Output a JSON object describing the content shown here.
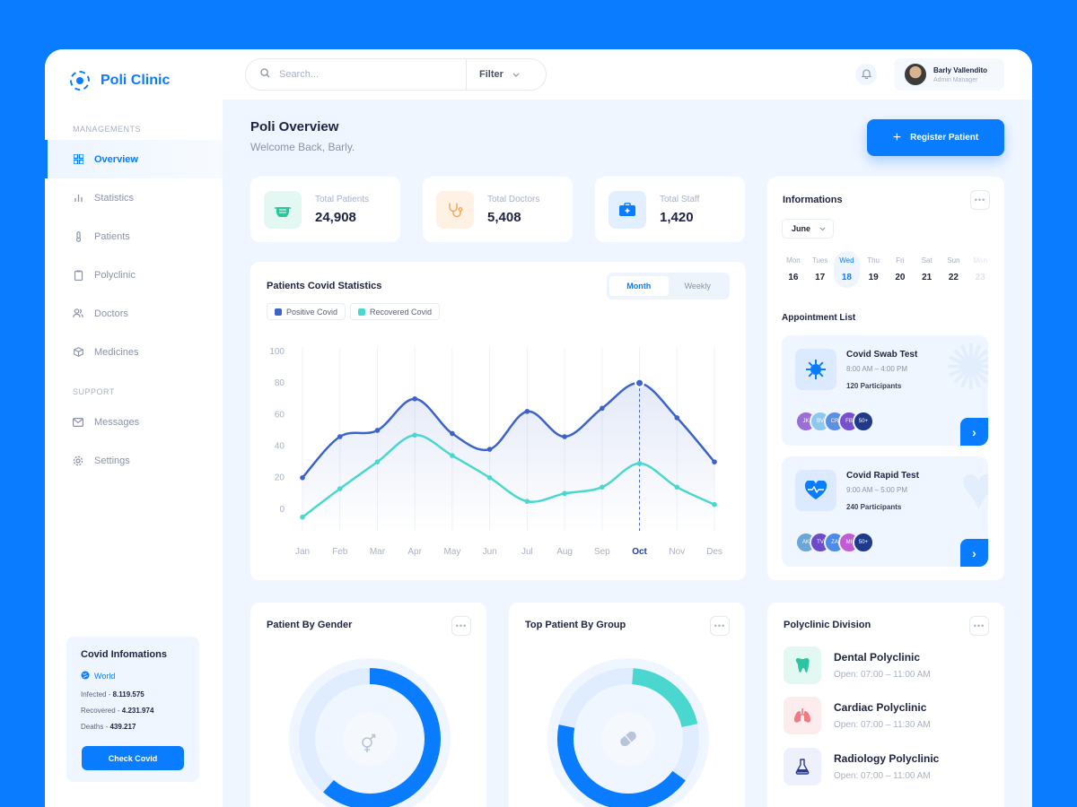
{
  "brand": {
    "name": "Poli Clinic"
  },
  "sidebar": {
    "managements_label": "MANAGEMENTS",
    "support_label": "SUPPORT",
    "items": [
      {
        "label": "Overview",
        "icon": "grid-icon"
      },
      {
        "label": "Statistics",
        "icon": "bar-chart-icon"
      },
      {
        "label": "Patients",
        "icon": "thermometer-icon"
      },
      {
        "label": "Polyclinic",
        "icon": "clipboard-icon"
      },
      {
        "label": "Doctors",
        "icon": "users-icon"
      },
      {
        "label": "Medicines",
        "icon": "box-icon"
      }
    ],
    "support_items": [
      {
        "label": "Messages",
        "icon": "mail-icon"
      },
      {
        "label": "Settings",
        "icon": "gear-icon"
      }
    ]
  },
  "covid_info": {
    "title": "Covid Infomations",
    "region": "World",
    "infected_label": "Infected - ",
    "infected": "8.119.575",
    "recovered_label": "Recovered - ",
    "recovered": "4.231.974",
    "deaths_label": "Deaths - ",
    "deaths": "439.217",
    "button": "Check Covid"
  },
  "topbar": {
    "search_placeholder": "Search...",
    "filter_label": "Filter",
    "user_name": "Barly Vallendito",
    "user_role": "Admin Manager"
  },
  "header": {
    "title": "Poli Overview",
    "subtitle": "Welcome Back, Barly.",
    "register_button": "Register Patient"
  },
  "stats": [
    {
      "label": "Total Patients",
      "value": "24,908",
      "color": "#2ec4a0"
    },
    {
      "label": "Total Doctors",
      "value": "5,408",
      "color": "#f5a85a"
    },
    {
      "label": "Total Staff",
      "value": "1,420",
      "color": "#0a7cff"
    }
  ],
  "covid_chart": {
    "title": "Patients Covid Statistics",
    "toggle": [
      "Month",
      "Weekly"
    ],
    "active_toggle": "Month"
  },
  "chart_data": {
    "type": "line",
    "categories": [
      "Jan",
      "Feb",
      "Mar",
      "Apr",
      "May",
      "Jun",
      "Jul",
      "Aug",
      "Sep",
      "Oct",
      "Nov",
      "Des"
    ],
    "series": [
      {
        "name": "Positive Covid",
        "color": "#3b63c9",
        "values": [
          20,
          46,
          50,
          70,
          48,
          38,
          62,
          46,
          64,
          80,
          58,
          30
        ]
      },
      {
        "name": "Recovered Covid",
        "color": "#4ad7cf",
        "values": [
          -5,
          13,
          30,
          47,
          34,
          20,
          5,
          10,
          14,
          29,
          14,
          3
        ]
      }
    ],
    "yticks": [
      100,
      80,
      60,
      40,
      20,
      0
    ],
    "ylim": [
      -8,
      100
    ],
    "highlight": "Oct"
  },
  "informations": {
    "title": "Informations",
    "month": "June",
    "days": [
      {
        "name": "Mon",
        "date": "16"
      },
      {
        "name": "Tues",
        "date": "17"
      },
      {
        "name": "Wed",
        "date": "18"
      },
      {
        "name": "Thu",
        "date": "19"
      },
      {
        "name": "Fri",
        "date": "20"
      },
      {
        "name": "Sat",
        "date": "21"
      },
      {
        "name": "Sun",
        "date": "22"
      },
      {
        "name": "Mon",
        "date": "23"
      }
    ],
    "selected_day": "18",
    "appointment_label": "Appointment List",
    "appointments": [
      {
        "title": "Covid Swab Test",
        "time": "8:00 AM – 4:00 PM",
        "participants": "120 Participants",
        "avatars": [
          "JK",
          "BV",
          "CR",
          "FB",
          "50+"
        ]
      },
      {
        "title": "Covid Rapid Test",
        "time": "9:00 AM – 5:00 PM",
        "participants": "240 Participants",
        "avatars": [
          "AK",
          "TV",
          "ZA",
          "MI",
          "50+"
        ]
      }
    ]
  },
  "gender_card": {
    "title": "Patient By Gender"
  },
  "group_card": {
    "title": "Top Patient By Group"
  },
  "polyclinic": {
    "title": "Polyclinic Division",
    "items": [
      {
        "name": "Dental Polyclinic",
        "open": "Open: 07:00 – 11:00 AM"
      },
      {
        "name": "Cardiac Polyclinic",
        "open": "Open: 07:00 – 11:30 AM"
      },
      {
        "name": "Radiology Polyclinic",
        "open": "Open: 07:00 – 11:00 AM"
      }
    ]
  }
}
